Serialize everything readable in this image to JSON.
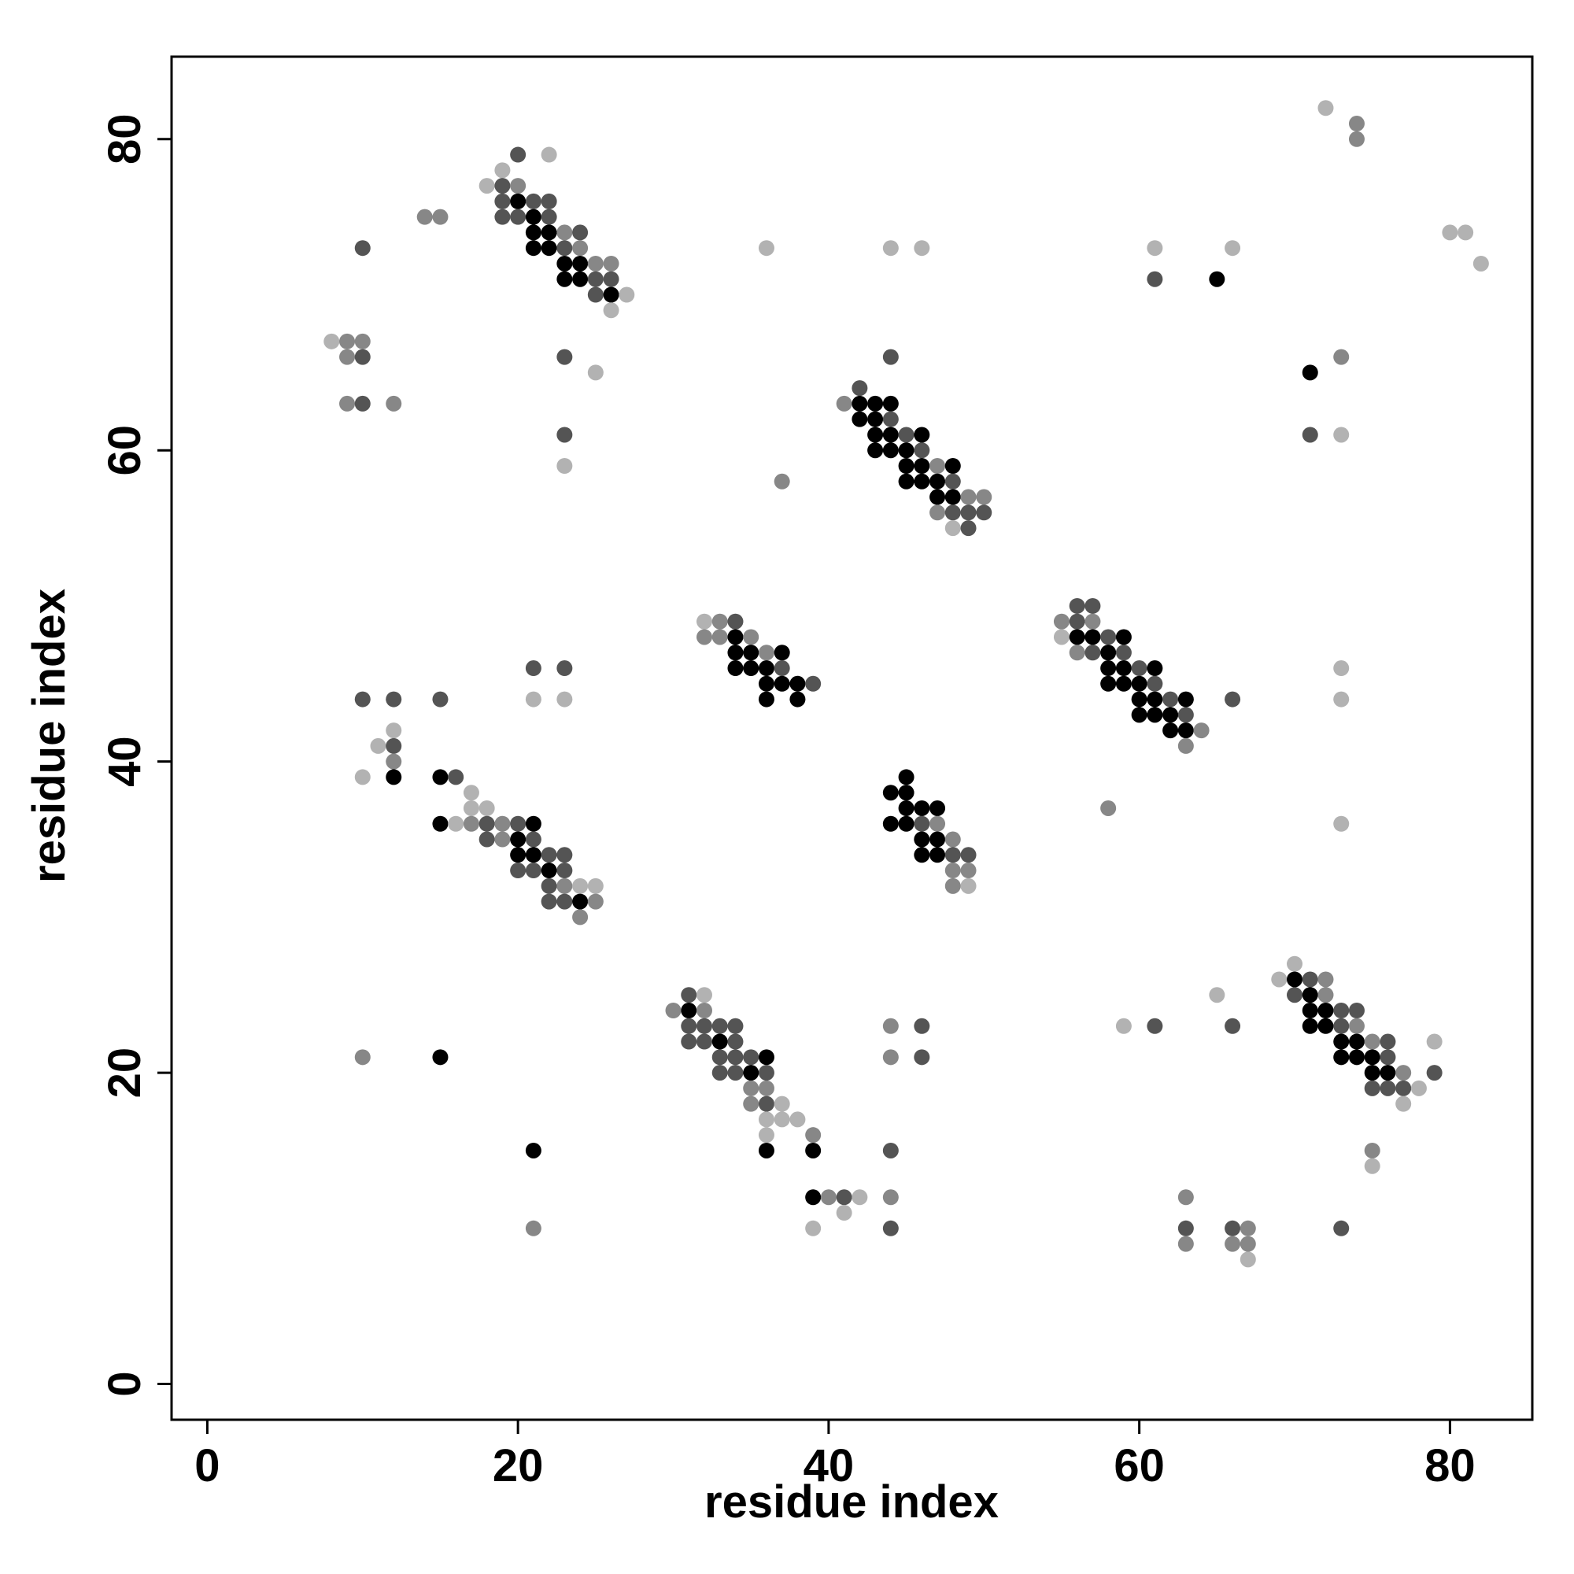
{
  "chart_data": {
    "type": "scatter",
    "xlabel": "residue index",
    "ylabel": "residue index",
    "xlim": [
      -2.3,
      85.3
    ],
    "ylim": [
      -2.3,
      85.3
    ],
    "x_ticks": [
      0,
      20,
      40,
      60,
      80
    ],
    "y_ticks": [
      0,
      20,
      40,
      60,
      80
    ],
    "grid": false,
    "legend": "none",
    "colors": {
      "l1": "#b2b2b2",
      "l2": "#878787",
      "l3": "#545454",
      "l4": "#000000"
    },
    "points": [
      [
        20,
        79,
        3
      ],
      [
        22,
        79,
        1
      ],
      [
        19,
        78,
        1
      ],
      [
        18,
        77,
        1
      ],
      [
        19,
        77,
        3
      ],
      [
        20,
        77,
        2
      ],
      [
        19,
        76,
        3
      ],
      [
        20,
        76,
        4
      ],
      [
        21,
        76,
        3
      ],
      [
        22,
        76,
        3
      ],
      [
        14,
        75,
        2
      ],
      [
        15,
        75,
        2
      ],
      [
        19,
        75,
        3
      ],
      [
        20,
        75,
        3
      ],
      [
        21,
        75,
        4
      ],
      [
        22,
        75,
        3
      ],
      [
        21,
        74,
        4
      ],
      [
        22,
        74,
        4
      ],
      [
        23,
        74,
        2
      ],
      [
        24,
        74,
        3
      ],
      [
        10,
        73,
        3
      ],
      [
        21,
        73,
        4
      ],
      [
        22,
        73,
        4
      ],
      [
        23,
        73,
        3
      ],
      [
        24,
        73,
        2
      ],
      [
        23,
        72,
        4
      ],
      [
        24,
        72,
        4
      ],
      [
        25,
        72,
        2
      ],
      [
        26,
        72,
        2
      ],
      [
        23,
        71,
        4
      ],
      [
        24,
        71,
        4
      ],
      [
        25,
        71,
        3
      ],
      [
        26,
        71,
        3
      ],
      [
        25,
        70,
        3
      ],
      [
        26,
        70,
        4
      ],
      [
        27,
        70,
        1
      ],
      [
        26,
        69,
        1
      ],
      [
        8,
        67,
        1
      ],
      [
        9,
        67,
        2
      ],
      [
        10,
        67,
        2
      ],
      [
        9,
        66,
        2
      ],
      [
        10,
        66,
        3
      ],
      [
        23,
        66,
        3
      ],
      [
        25,
        65,
        1
      ],
      [
        9,
        63,
        2
      ],
      [
        10,
        63,
        3
      ],
      [
        12,
        63,
        2
      ],
      [
        23,
        61,
        3
      ],
      [
        23,
        59,
        1
      ],
      [
        36,
        73,
        1
      ],
      [
        44,
        73,
        1
      ],
      [
        46,
        73,
        1
      ],
      [
        44,
        66,
        3
      ],
      [
        42,
        64,
        3
      ],
      [
        41,
        63,
        2
      ],
      [
        42,
        63,
        4
      ],
      [
        43,
        63,
        4
      ],
      [
        44,
        63,
        4
      ],
      [
        42,
        62,
        4
      ],
      [
        43,
        62,
        4
      ],
      [
        44,
        62,
        3
      ],
      [
        43,
        61,
        4
      ],
      [
        44,
        61,
        4
      ],
      [
        45,
        61,
        3
      ],
      [
        46,
        61,
        4
      ],
      [
        43,
        60,
        4
      ],
      [
        44,
        60,
        4
      ],
      [
        45,
        60,
        4
      ],
      [
        46,
        60,
        3
      ],
      [
        45,
        59,
        4
      ],
      [
        46,
        59,
        4
      ],
      [
        47,
        59,
        2
      ],
      [
        48,
        59,
        4
      ],
      [
        37,
        58,
        2
      ],
      [
        45,
        58,
        4
      ],
      [
        46,
        58,
        4
      ],
      [
        47,
        58,
        4
      ],
      [
        48,
        58,
        3
      ],
      [
        47,
        57,
        4
      ],
      [
        48,
        57,
        4
      ],
      [
        49,
        57,
        2
      ],
      [
        50,
        57,
        2
      ],
      [
        47,
        56,
        2
      ],
      [
        48,
        56,
        3
      ],
      [
        49,
        56,
        3
      ],
      [
        50,
        56,
        3
      ],
      [
        48,
        55,
        1
      ],
      [
        49,
        55,
        3
      ],
      [
        72,
        82,
        1
      ],
      [
        74,
        81,
        2
      ],
      [
        74,
        80,
        2
      ],
      [
        80,
        74,
        1
      ],
      [
        81,
        74,
        1
      ],
      [
        82,
        72,
        1
      ],
      [
        61,
        73,
        1
      ],
      [
        66,
        73,
        1
      ],
      [
        61,
        71,
        3
      ],
      [
        65,
        71,
        4
      ],
      [
        71,
        65,
        4
      ],
      [
        73,
        66,
        2
      ],
      [
        71,
        61,
        3
      ],
      [
        73,
        61,
        1
      ],
      [
        32,
        49,
        1
      ],
      [
        33,
        49,
        2
      ],
      [
        34,
        49,
        3
      ],
      [
        32,
        48,
        2
      ],
      [
        33,
        48,
        2
      ],
      [
        34,
        48,
        4
      ],
      [
        35,
        48,
        2
      ],
      [
        34,
        47,
        4
      ],
      [
        35,
        47,
        4
      ],
      [
        36,
        47,
        2
      ],
      [
        37,
        47,
        4
      ],
      [
        34,
        46,
        4
      ],
      [
        35,
        46,
        4
      ],
      [
        36,
        46,
        4
      ],
      [
        37,
        46,
        3
      ],
      [
        36,
        45,
        4
      ],
      [
        37,
        45,
        4
      ],
      [
        38,
        45,
        4
      ],
      [
        39,
        45,
        3
      ],
      [
        36,
        44,
        4
      ],
      [
        38,
        44,
        4
      ],
      [
        56,
        50,
        3
      ],
      [
        57,
        50,
        3
      ],
      [
        55,
        49,
        2
      ],
      [
        56,
        49,
        3
      ],
      [
        57,
        49,
        2
      ],
      [
        55,
        48,
        1
      ],
      [
        56,
        48,
        4
      ],
      [
        57,
        48,
        4
      ],
      [
        58,
        48,
        3
      ],
      [
        59,
        48,
        4
      ],
      [
        56,
        47,
        2
      ],
      [
        57,
        47,
        3
      ],
      [
        58,
        47,
        4
      ],
      [
        59,
        47,
        3
      ],
      [
        58,
        46,
        4
      ],
      [
        59,
        46,
        4
      ],
      [
        60,
        46,
        3
      ],
      [
        61,
        46,
        4
      ],
      [
        58,
        45,
        4
      ],
      [
        59,
        45,
        4
      ],
      [
        60,
        45,
        4
      ],
      [
        61,
        45,
        3
      ],
      [
        60,
        44,
        4
      ],
      [
        61,
        44,
        4
      ],
      [
        62,
        44,
        3
      ],
      [
        63,
        44,
        4
      ],
      [
        66,
        44,
        3
      ],
      [
        60,
        43,
        4
      ],
      [
        61,
        43,
        4
      ],
      [
        62,
        43,
        4
      ],
      [
        63,
        43,
        3
      ],
      [
        62,
        42,
        4
      ],
      [
        63,
        42,
        4
      ],
      [
        64,
        42,
        2
      ],
      [
        63,
        41,
        2
      ],
      [
        73,
        46,
        1
      ],
      [
        73,
        44,
        1
      ],
      [
        58,
        37,
        2
      ],
      [
        73,
        36,
        1
      ],
      [
        21,
        46,
        3
      ],
      [
        23,
        46,
        3
      ],
      [
        10,
        44,
        3
      ],
      [
        12,
        44,
        3
      ],
      [
        15,
        44,
        3
      ],
      [
        21,
        44,
        1
      ],
      [
        23,
        44,
        1
      ],
      [
        12,
        42,
        1
      ],
      [
        11,
        41,
        1
      ],
      [
        12,
        41,
        3
      ],
      [
        12,
        40,
        2
      ],
      [
        10,
        39,
        1
      ],
      [
        12,
        39,
        4
      ],
      [
        15,
        39,
        4
      ],
      [
        16,
        39,
        3
      ],
      [
        17,
        38,
        1
      ],
      [
        17,
        37,
        1
      ],
      [
        18,
        37,
        1
      ],
      [
        15,
        36,
        4
      ],
      [
        16,
        36,
        1
      ],
      [
        17,
        36,
        2
      ],
      [
        18,
        36,
        3
      ],
      [
        19,
        36,
        2
      ],
      [
        20,
        36,
        3
      ],
      [
        21,
        36,
        4
      ],
      [
        18,
        35,
        3
      ],
      [
        19,
        35,
        2
      ],
      [
        20,
        35,
        4
      ],
      [
        21,
        35,
        3
      ],
      [
        20,
        34,
        4
      ],
      [
        21,
        34,
        4
      ],
      [
        22,
        34,
        3
      ],
      [
        23,
        34,
        3
      ],
      [
        20,
        33,
        3
      ],
      [
        21,
        33,
        3
      ],
      [
        22,
        33,
        4
      ],
      [
        23,
        33,
        3
      ],
      [
        22,
        32,
        3
      ],
      [
        23,
        32,
        2
      ],
      [
        24,
        32,
        1
      ],
      [
        25,
        32,
        1
      ],
      [
        22,
        31,
        3
      ],
      [
        23,
        31,
        3
      ],
      [
        24,
        31,
        4
      ],
      [
        25,
        31,
        2
      ],
      [
        24,
        30,
        2
      ],
      [
        45,
        39,
        4
      ],
      [
        44,
        38,
        4
      ],
      [
        45,
        38,
        4
      ],
      [
        45,
        37,
        4
      ],
      [
        46,
        37,
        4
      ],
      [
        47,
        37,
        4
      ],
      [
        44,
        36,
        4
      ],
      [
        45,
        36,
        4
      ],
      [
        46,
        36,
        3
      ],
      [
        47,
        36,
        2
      ],
      [
        46,
        35,
        4
      ],
      [
        47,
        35,
        4
      ],
      [
        48,
        35,
        2
      ],
      [
        46,
        34,
        4
      ],
      [
        47,
        34,
        4
      ],
      [
        48,
        34,
        3
      ],
      [
        49,
        34,
        3
      ],
      [
        48,
        33,
        2
      ],
      [
        49,
        33,
        2
      ],
      [
        48,
        32,
        2
      ],
      [
        49,
        32,
        1
      ],
      [
        31,
        25,
        3
      ],
      [
        32,
        25,
        1
      ],
      [
        31,
        24,
        4
      ],
      [
        32,
        24,
        2
      ],
      [
        30,
        24,
        2
      ],
      [
        31,
        23,
        3
      ],
      [
        32,
        23,
        3
      ],
      [
        33,
        23,
        3
      ],
      [
        34,
        23,
        3
      ],
      [
        31,
        22,
        3
      ],
      [
        32,
        22,
        3
      ],
      [
        33,
        22,
        4
      ],
      [
        34,
        22,
        3
      ],
      [
        33,
        21,
        3
      ],
      [
        34,
        21,
        3
      ],
      [
        35,
        21,
        3
      ],
      [
        36,
        21,
        4
      ],
      [
        33,
        20,
        3
      ],
      [
        34,
        20,
        3
      ],
      [
        35,
        20,
        4
      ],
      [
        36,
        20,
        3
      ],
      [
        35,
        19,
        2
      ],
      [
        36,
        19,
        2
      ],
      [
        35,
        18,
        2
      ],
      [
        36,
        18,
        3
      ],
      [
        37,
        18,
        1
      ],
      [
        36,
        17,
        1
      ],
      [
        37,
        17,
        1
      ],
      [
        38,
        17,
        1
      ],
      [
        36,
        16,
        1
      ],
      [
        39,
        16,
        2
      ],
      [
        36,
        15,
        4
      ],
      [
        39,
        15,
        4
      ],
      [
        39,
        12,
        4
      ],
      [
        40,
        12,
        2
      ],
      [
        41,
        12,
        3
      ],
      [
        42,
        12,
        1
      ],
      [
        41,
        11,
        1
      ],
      [
        39,
        10,
        1
      ],
      [
        44,
        12,
        2
      ],
      [
        44,
        10,
        3
      ],
      [
        44,
        15,
        3
      ],
      [
        44,
        23,
        2
      ],
      [
        46,
        23,
        3
      ],
      [
        44,
        21,
        2
      ],
      [
        46,
        21,
        3
      ],
      [
        10,
        21,
        2
      ],
      [
        15,
        21,
        4
      ],
      [
        21,
        15,
        4
      ],
      [
        21,
        10,
        2
      ],
      [
        69,
        26,
        1
      ],
      [
        70,
        27,
        1
      ],
      [
        70,
        26,
        4
      ],
      [
        71,
        26,
        3
      ],
      [
        72,
        26,
        2
      ],
      [
        70,
        25,
        3
      ],
      [
        71,
        25,
        4
      ],
      [
        72,
        25,
        2
      ],
      [
        71,
        24,
        4
      ],
      [
        72,
        24,
        4
      ],
      [
        73,
        24,
        3
      ],
      [
        74,
        24,
        3
      ],
      [
        71,
        23,
        4
      ],
      [
        72,
        23,
        4
      ],
      [
        73,
        23,
        3
      ],
      [
        74,
        23,
        2
      ],
      [
        73,
        22,
        4
      ],
      [
        74,
        22,
        4
      ],
      [
        75,
        22,
        2
      ],
      [
        76,
        22,
        3
      ],
      [
        73,
        21,
        4
      ],
      [
        74,
        21,
        4
      ],
      [
        75,
        21,
        4
      ],
      [
        76,
        21,
        3
      ],
      [
        75,
        20,
        4
      ],
      [
        76,
        20,
        4
      ],
      [
        77,
        20,
        2
      ],
      [
        75,
        19,
        3
      ],
      [
        76,
        19,
        3
      ],
      [
        77,
        19,
        3
      ],
      [
        78,
        19,
        1
      ],
      [
        77,
        18,
        1
      ],
      [
        79,
        22,
        1
      ],
      [
        79,
        20,
        3
      ],
      [
        65,
        25,
        1
      ],
      [
        59,
        23,
        1
      ],
      [
        61,
        23,
        3
      ],
      [
        66,
        23,
        3
      ],
      [
        75,
        15,
        2
      ],
      [
        75,
        14,
        1
      ],
      [
        63,
        12,
        2
      ],
      [
        63,
        10,
        3
      ],
      [
        63,
        9,
        2
      ],
      [
        66,
        10,
        3
      ],
      [
        66,
        9,
        2
      ],
      [
        67,
        10,
        2
      ],
      [
        67,
        9,
        2
      ],
      [
        67,
        8,
        1
      ],
      [
        73,
        10,
        3
      ]
    ]
  }
}
